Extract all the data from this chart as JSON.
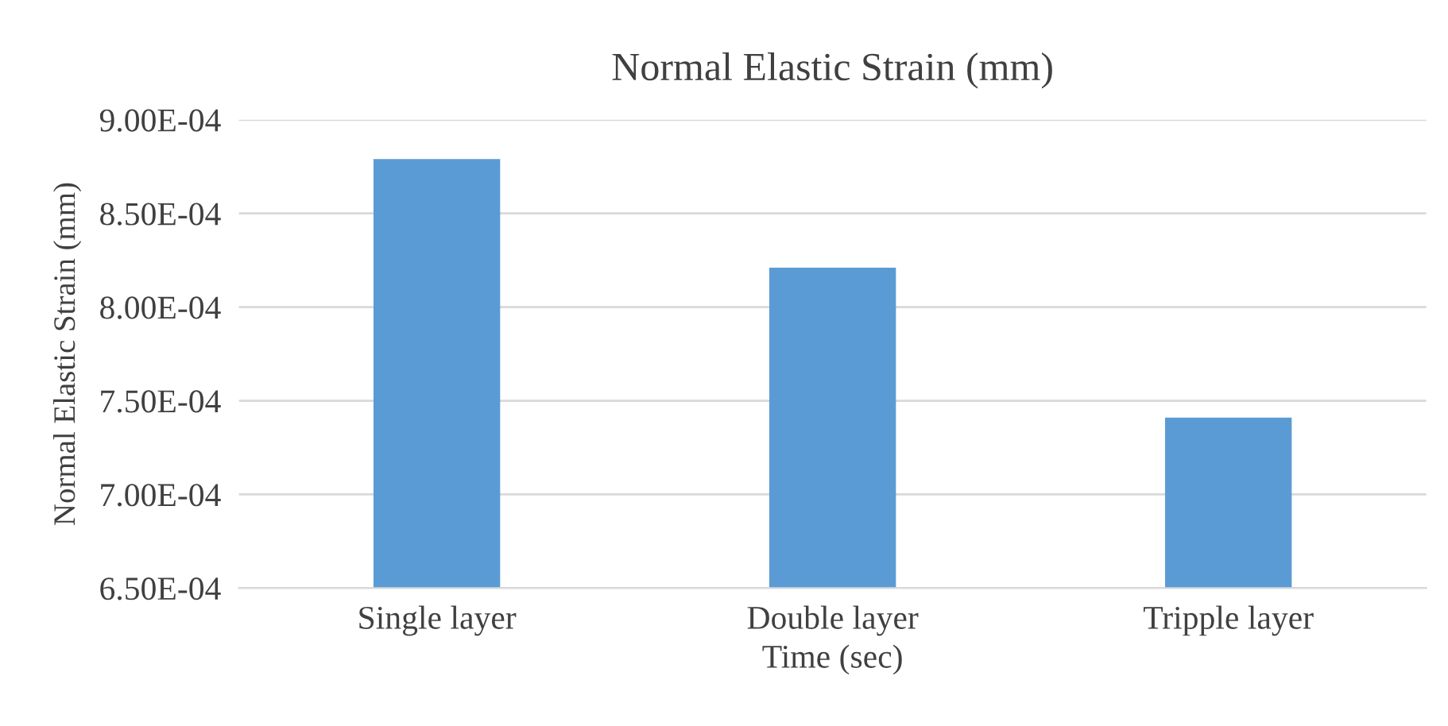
{
  "chart_data": {
    "type": "bar",
    "title": "Normal Elastic Strain (mm)",
    "xlabel": "Time (sec)",
    "ylabel": "Normal Elastic Strain (mm)",
    "categories": [
      "Single layer",
      "Double layer",
      "Tripple layer"
    ],
    "values": [
      0.000879,
      0.000821,
      0.000741
    ],
    "color": "#5b9bd5",
    "ylim": [
      0.00065,
      0.0009
    ],
    "yticks": [
      {
        "value": 0.00065,
        "label": "6.50E-04"
      },
      {
        "value": 0.0007,
        "label": "7.00E-04"
      },
      {
        "value": 0.00075,
        "label": "7.50E-04"
      },
      {
        "value": 0.0008,
        "label": "8.00E-04"
      },
      {
        "value": 0.00085,
        "label": "8.50E-04"
      },
      {
        "value": 0.0009,
        "label": "9.00E-04"
      }
    ],
    "grid": "y",
    "legend": false
  }
}
